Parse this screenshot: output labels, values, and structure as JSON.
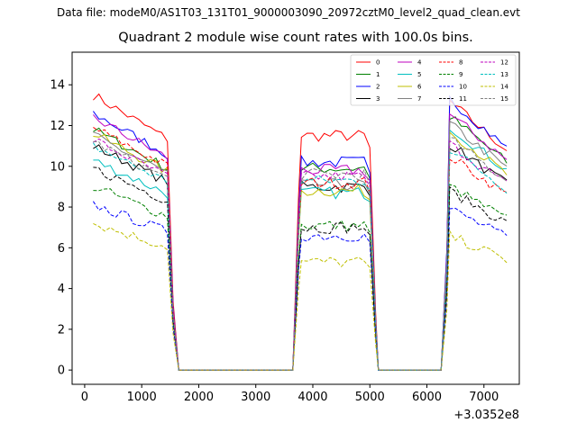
{
  "figure": {
    "supertitle": "Data file: modeM0/AS1T03_131T01_9000003090_20972cztM0_level2_quad_clean.evt",
    "title": "Quadrant 2 module wise count rates with 100.0s bins."
  },
  "chart_data": {
    "type": "line",
    "title": "Quadrant 2 module wise count rates with 100.0s bins.",
    "xlabel": "",
    "ylabel": "",
    "x_offset_label": "+3.0352e8",
    "xlim": [
      -220,
      7620
    ],
    "ylim": [
      -0.7,
      15.6
    ],
    "xticks": [
      0,
      1000,
      2000,
      3000,
      4000,
      5000,
      6000,
      7000
    ],
    "yticks": [
      0,
      2,
      4,
      6,
      8,
      10,
      12,
      14
    ],
    "grid": false,
    "legend_position": "top-right",
    "segments": [
      {
        "start": 150,
        "end": 1450
      },
      {
        "start": 3800,
        "end": 4900
      },
      {
        "start": 6400,
        "end": 7400
      }
    ],
    "series": [
      {
        "name": "0",
        "color": "#ff0000",
        "style": "solid",
        "levels": [
          13.5,
          11.5,
          10.8
        ]
      },
      {
        "name": "1",
        "color": "#008000",
        "style": "solid",
        "levels": [
          11.8,
          9.9,
          10.2
        ]
      },
      {
        "name": "2",
        "color": "#0000ff",
        "style": "solid",
        "levels": [
          12.6,
          10.2,
          10.9
        ]
      },
      {
        "name": "3",
        "color": "#000000",
        "style": "solid",
        "levels": [
          11.0,
          9.0,
          9.1
        ]
      },
      {
        "name": "4",
        "color": "#bf00bf",
        "style": "solid",
        "levels": [
          12.4,
          9.8,
          10.3
        ]
      },
      {
        "name": "5",
        "color": "#00bfbf",
        "style": "solid",
        "levels": [
          10.3,
          8.7,
          9.8
        ]
      },
      {
        "name": "6",
        "color": "#bfbf00",
        "style": "solid",
        "levels": [
          11.6,
          8.8,
          9.6
        ]
      },
      {
        "name": "7",
        "color": "#808080",
        "style": "solid",
        "levels": [
          11.5,
          9.1,
          9.9
        ]
      },
      {
        "name": "8",
        "color": "#ff0000",
        "style": "dashed",
        "levels": [
          11.9,
          9.2,
          8.6
        ]
      },
      {
        "name": "9",
        "color": "#008000",
        "style": "dashed",
        "levels": [
          9.0,
          7.1,
          7.4
        ]
      },
      {
        "name": "10",
        "color": "#0000ff",
        "style": "dashed",
        "levels": [
          8.1,
          6.6,
          6.5
        ]
      },
      {
        "name": "11",
        "color": "#000000",
        "style": "dashed",
        "levels": [
          9.9,
          7.0,
          7.2
        ]
      },
      {
        "name": "12",
        "color": "#bf00bf",
        "style": "dashed",
        "levels": [
          11.3,
          9.5,
          9.1
        ]
      },
      {
        "name": "13",
        "color": "#00bfbf",
        "style": "dashed",
        "levels": [
          11.0,
          9.3,
          8.9
        ]
      },
      {
        "name": "14",
        "color": "#bfbf00",
        "style": "dashed",
        "levels": [
          7.2,
          5.3,
          5.4
        ]
      },
      {
        "name": "15",
        "color": "#808080",
        "style": "dashed",
        "levels": [
          11.2,
          9.6,
          9.3
        ]
      }
    ]
  }
}
